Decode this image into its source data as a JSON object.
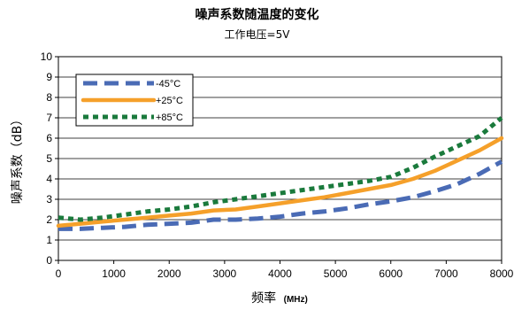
{
  "chart_data": {
    "type": "line",
    "title": "噪声系数随温度的变化",
    "subtitle": "工作电压=5V",
    "xlabel": "频率",
    "xlabel_unit": "(MHz)",
    "ylabel": "噪声系数（dB）",
    "xlim": [
      0,
      8000
    ],
    "ylim": [
      0,
      10
    ],
    "xticks": [
      0,
      1000,
      2000,
      3000,
      4000,
      5000,
      6000,
      7000,
      8000
    ],
    "yticks": [
      0,
      1,
      2,
      3,
      4,
      5,
      6,
      7,
      8,
      9,
      10
    ],
    "grid": true,
    "legend_position": "top-left",
    "series": [
      {
        "name": "-45°C",
        "color": "#4a6bb5",
        "style": "dashed",
        "x": [
          0,
          400,
          800,
          1200,
          1600,
          2000,
          2400,
          2800,
          3200,
          3600,
          4000,
          4400,
          4800,
          5200,
          5600,
          6000,
          6400,
          6800,
          7200,
          7600,
          8000
        ],
        "y": [
          1.55,
          1.55,
          1.6,
          1.65,
          1.75,
          1.8,
          1.85,
          2.0,
          2.0,
          2.05,
          2.15,
          2.3,
          2.4,
          2.55,
          2.75,
          2.9,
          3.1,
          3.4,
          3.75,
          4.25,
          4.85
        ]
      },
      {
        "name": "+25°C",
        "color": "#f5a02a",
        "style": "solid",
        "x": [
          0,
          400,
          800,
          1200,
          1600,
          2000,
          2400,
          2800,
          3200,
          3600,
          4000,
          4400,
          4800,
          5200,
          5600,
          6000,
          6400,
          6800,
          7200,
          7600,
          8000
        ],
        "y": [
          1.7,
          1.8,
          1.9,
          2.0,
          2.1,
          2.2,
          2.3,
          2.45,
          2.5,
          2.65,
          2.8,
          2.95,
          3.1,
          3.3,
          3.5,
          3.7,
          4.0,
          4.4,
          4.9,
          5.4,
          6.0
        ]
      },
      {
        "name": "+85°C",
        "color": "#1a7a3c",
        "style": "dotted",
        "x": [
          0,
          400,
          800,
          1200,
          1600,
          2000,
          2400,
          2800,
          3200,
          3600,
          4000,
          4400,
          4800,
          5200,
          5600,
          6000,
          6400,
          6800,
          7200,
          7600,
          8000
        ],
        "y": [
          2.1,
          2.0,
          2.1,
          2.25,
          2.4,
          2.5,
          2.65,
          2.85,
          3.0,
          3.15,
          3.3,
          3.45,
          3.6,
          3.75,
          3.9,
          4.1,
          4.55,
          5.1,
          5.6,
          6.1,
          7.0
        ]
      }
    ]
  }
}
